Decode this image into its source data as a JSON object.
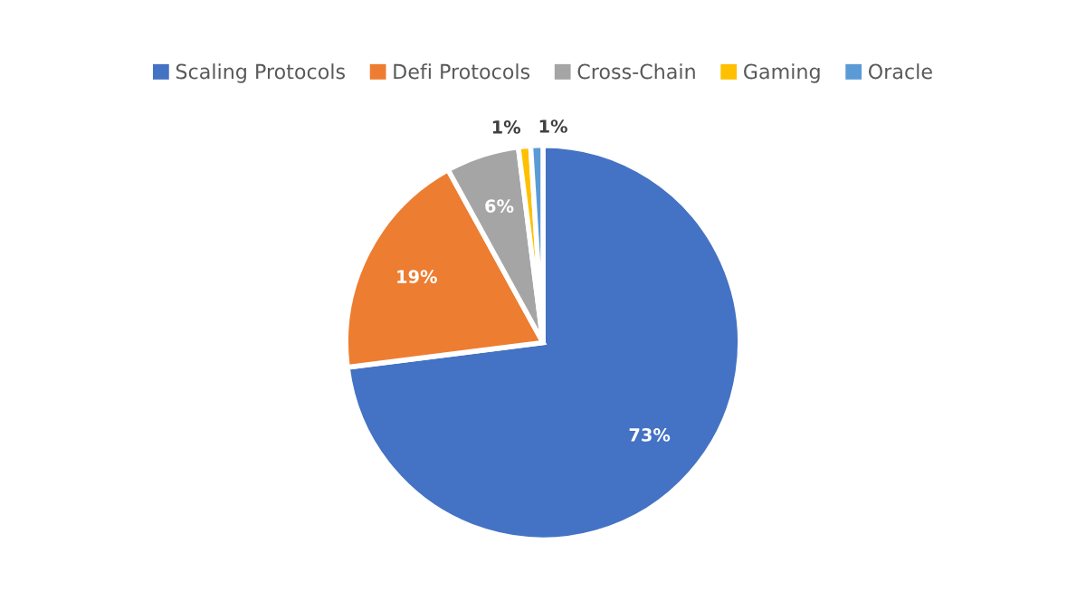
{
  "chart_data": {
    "type": "pie",
    "categories": [
      "Scaling Protocols",
      "Defi Protocols",
      "Cross-Chain",
      "Gaming",
      "Oracle"
    ],
    "values": [
      73,
      19,
      6,
      1,
      1
    ],
    "colors": [
      "#4472c4",
      "#ed7d31",
      "#a5a5a5",
      "#ffc000",
      "#5b9bd5"
    ],
    "value_labels": [
      "73%",
      "19%",
      "6%",
      "1%",
      "1%"
    ],
    "legend": "top"
  }
}
